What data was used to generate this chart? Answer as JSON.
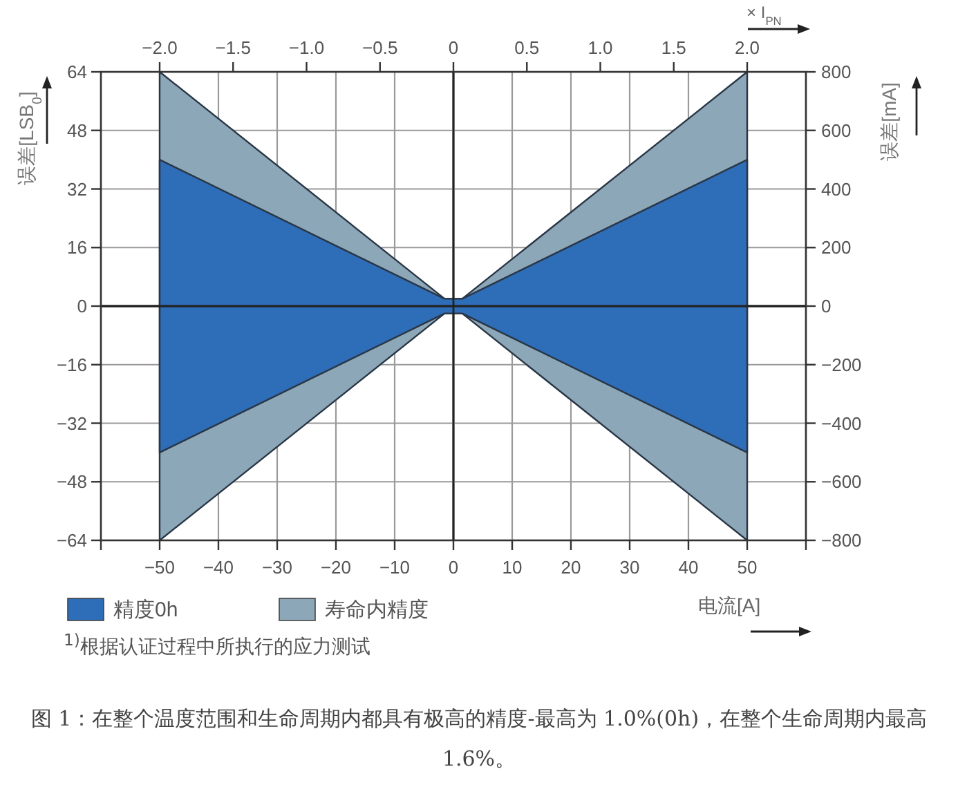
{
  "chart_data": {
    "type": "area",
    "xlabel": "电流[A]",
    "ylabel": "误差[LSB$_{0}$]",
    "y2label": "误差[mA]",
    "x2label": "× I$_{PN}$",
    "x": [
      -50,
      -1.5,
      1.5,
      50
    ],
    "series": [
      {
        "name": "精度0h",
        "color": "#2e6db8",
        "values": [
          40,
          2,
          2,
          40
        ]
      },
      {
        "color": "#2e6db8",
        "values": [
          -40,
          -2,
          -2,
          -40
        ]
      },
      {
        "name": "寿命内精度",
        "color": "#8ca8b8",
        "values": [
          64,
          2,
          2,
          64
        ]
      },
      {
        "color": "#8ca8b8",
        "values": [
          -64,
          -2,
          -2,
          -64
        ]
      }
    ],
    "xlim": [
      -60,
      60
    ],
    "xticks": [
      {
        "value": -60,
        "label": null
      },
      -50,
      -40,
      -30,
      -20,
      -10,
      0,
      10,
      20,
      30,
      40,
      50,
      {
        "value": 60,
        "label": null
      }
    ],
    "x2lim": [
      -2.4,
      2.4
    ],
    "x2ticks": [
      {
        "value": -2,
        "label": "−2.0"
      },
      -1.5,
      {
        "value": -1,
        "label": "−1.0"
      },
      -0.5,
      0,
      0.5,
      {
        "value": 1,
        "label": "1.0"
      },
      1.5,
      {
        "value": 2,
        "label": "2.0"
      }
    ],
    "ylim": [
      -64,
      64
    ],
    "yticks": [
      -64,
      -48,
      -32,
      -16,
      0,
      16,
      32,
      48,
      64
    ],
    "y2lim": [
      -800,
      800
    ],
    "y2ticks": [
      -800,
      -600,
      -400,
      -200,
      0,
      200,
      400,
      600,
      800
    ],
    "grid": true,
    "legend": "bottom left",
    "annotations": [
      "$^{1)}$根据认证过程中所执行的应力测试",
      "图 1：在整个温度范围和生命周期内都具有极高的精度-最高为 1.0%(0h)，在整个生命周期内最高 1.6%。"
    ]
  }
}
